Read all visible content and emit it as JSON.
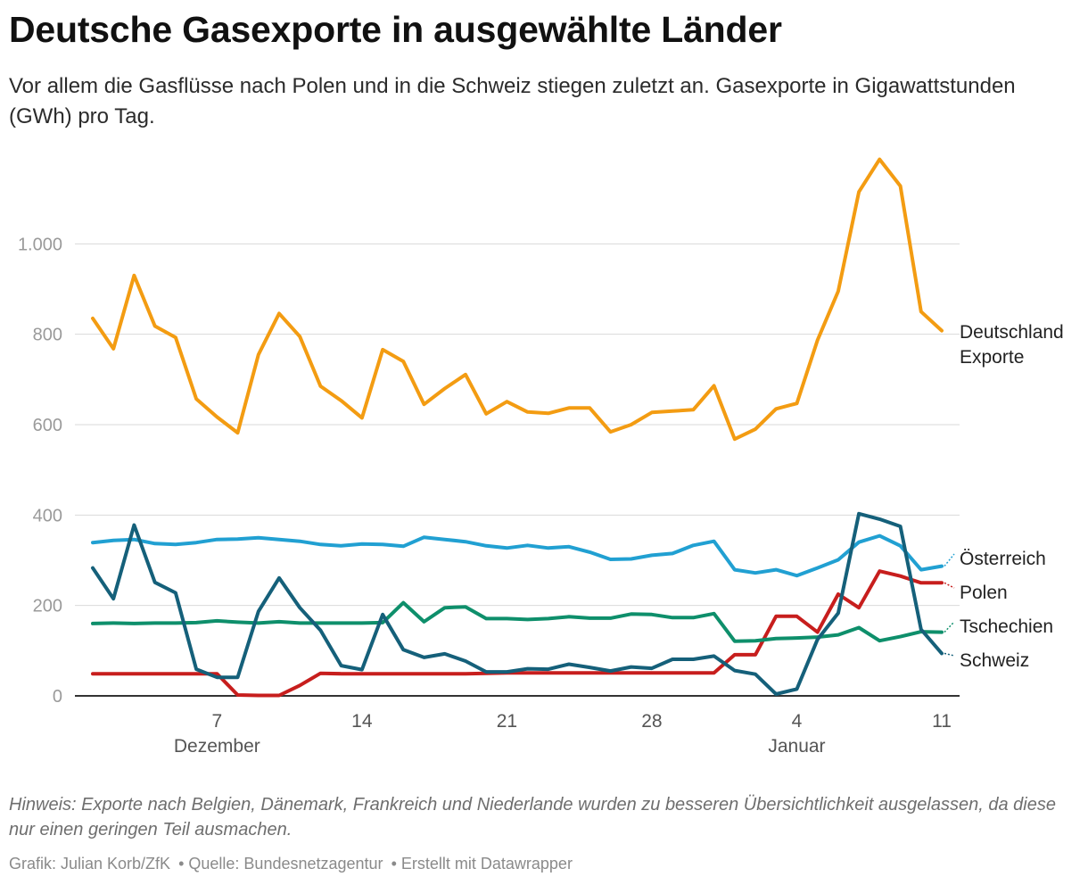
{
  "title": "Deutsche Gasexporte in ausgewählte Länder",
  "subtitle": "Vor allem die Gasflüsse nach Polen und in die Schweiz stiegen zuletzt an. Gasexporte in Gigawattstunden (GWh) pro Tag.",
  "note": "Hinweis: Exporte nach Belgien, Dänemark, Frankreich und Niederlande wurden zu besseren Übersichtlichkeit ausgelassen, da diese nur einen geringen Teil ausmachen.",
  "credits": {
    "grafik": "Grafik: Julian Korb/ZfK",
    "quelle": "• Quelle: Bundesnetzagentur",
    "erstellt": "• Erstellt mit Datawrapper"
  },
  "chart_data": {
    "type": "line",
    "x_range": [
      0,
      42
    ],
    "ylim": [
      0,
      1200
    ],
    "yticks": [
      {
        "value": 0,
        "label": "0"
      },
      {
        "value": 200,
        "label": "200"
      },
      {
        "value": 400,
        "label": "400"
      },
      {
        "value": 600,
        "label": "600"
      },
      {
        "value": 800,
        "label": "800"
      },
      {
        "value": 1000,
        "label": "1.000"
      }
    ],
    "xticks": [
      {
        "index": 6,
        "label": "7",
        "sublabel": "Dezember"
      },
      {
        "index": 13,
        "label": "14",
        "sublabel": ""
      },
      {
        "index": 20,
        "label": "21",
        "sublabel": ""
      },
      {
        "index": 27,
        "label": "28",
        "sublabel": ""
      },
      {
        "index": 34,
        "label": "4",
        "sublabel": "Januar"
      },
      {
        "index": 41,
        "label": "11",
        "sublabel": ""
      }
    ],
    "series": [
      {
        "name": "Deutschland Exporte",
        "label_lines": [
          "Deutschland",
          "Exporte"
        ],
        "color": "#f39c12",
        "values": [
          835,
          768,
          930,
          818,
          793,
          657,
          617,
          582,
          755,
          846,
          795,
          685,
          653,
          615,
          766,
          740,
          645,
          680,
          711,
          624,
          651,
          628,
          625,
          637,
          637,
          584,
          600,
          627,
          630,
          633,
          686,
          568,
          590,
          635,
          647,
          787,
          895,
          1115,
          1187,
          1128,
          850,
          808
        ]
      },
      {
        "name": "Österreich",
        "label_lines": [
          "Österreich"
        ],
        "color": "#21a0d2",
        "values": [
          339,
          344,
          346,
          337,
          335,
          339,
          346,
          347,
          350,
          346,
          342,
          335,
          332,
          336,
          335,
          331,
          351,
          346,
          341,
          332,
          327,
          333,
          327,
          330,
          318,
          302,
          303,
          311,
          315,
          333,
          342,
          279,
          272,
          279,
          266,
          283,
          301,
          340,
          354,
          332,
          279,
          287
        ]
      },
      {
        "name": "Polen",
        "label_lines": [
          "Polen"
        ],
        "color": "#c71e1d",
        "values": [
          49,
          49,
          49,
          49,
          49,
          49,
          49,
          2,
          1,
          1,
          23,
          50,
          49,
          49,
          49,
          49,
          49,
          49,
          49,
          50,
          51,
          51,
          51,
          51,
          51,
          51,
          51,
          51,
          51,
          51,
          51,
          91,
          91,
          176,
          176,
          141,
          225,
          195,
          276,
          265,
          250,
          250
        ]
      },
      {
        "name": "Tschechien",
        "label_lines": [
          "Tschechien"
        ],
        "color": "#0e8f6b",
        "values": [
          160,
          161,
          160,
          161,
          161,
          162,
          166,
          163,
          161,
          164,
          161,
          161,
          161,
          161,
          162,
          206,
          164,
          195,
          197,
          171,
          171,
          169,
          171,
          175,
          172,
          172,
          181,
          180,
          173,
          173,
          182,
          121,
          122,
          127,
          128,
          130,
          135,
          151,
          122,
          131,
          142,
          141
        ]
      },
      {
        "name": "Schweiz",
        "label_lines": [
          "Schweiz"
        ],
        "color": "#15607a",
        "values": [
          283,
          215,
          378,
          251,
          228,
          59,
          41,
          41,
          187,
          261,
          195,
          145,
          67,
          58,
          180,
          102,
          85,
          93,
          77,
          53,
          53,
          60,
          59,
          70,
          63,
          55,
          64,
          61,
          81,
          81,
          88,
          56,
          48,
          4,
          15,
          125,
          183,
          403,
          391,
          375,
          147,
          94
        ]
      }
    ]
  }
}
